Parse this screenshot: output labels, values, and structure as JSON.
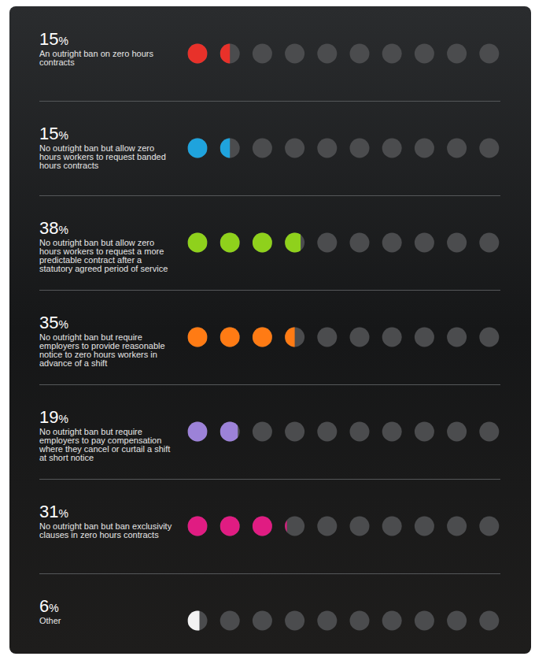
{
  "chart_data": {
    "type": "pictogram",
    "categories": [
      "An outright ban on zero hours contracts",
      "No outright ban but allow zero hours workers to request banded hours contracts",
      "No outright ban but allow zero hours workers to request a more predictable contract after a statutory agreed period of service",
      "No outright ban but require employers to provide reasonable notice to zero hours workers in advance of a shift",
      "No outright ban but require employers to pay compensation where they cancel or curtail a shift at short notice",
      "No outright ban but ban exclusivity clauses in zero hours contracts",
      "Other"
    ],
    "values": [
      15,
      15,
      38,
      35,
      19,
      31,
      6
    ],
    "value_labels": [
      "15%",
      "15%",
      "38%",
      "35%",
      "19%",
      "31%",
      "6%"
    ],
    "colors": [
      "#e8312a",
      "#1fa3dd",
      "#8fd11c",
      "#ff7b14",
      "#9c82d8",
      "#e01c82",
      "#f2f2f2"
    ],
    "xlim": [
      0,
      100
    ],
    "data_labels": true,
    "tick_labels": false
  }
}
